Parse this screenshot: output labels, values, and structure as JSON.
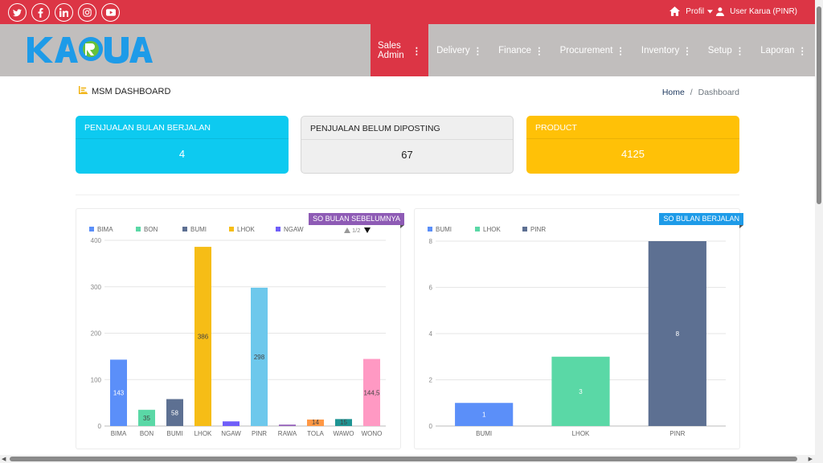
{
  "social": [
    {
      "icon": "twitter-icon",
      "glyph": "t"
    },
    {
      "icon": "facebook-icon",
      "glyph": "f"
    },
    {
      "icon": "linkedin-icon",
      "glyph": "in"
    },
    {
      "icon": "instagram-icon",
      "glyph": "◎"
    },
    {
      "icon": "youtube-icon",
      "glyph": "▶"
    }
  ],
  "topbar": {
    "home_icon": "home-icon",
    "profile_label": "Profil",
    "user_label": "User Karua (PINR)",
    "user_icon": "user-icon"
  },
  "brand": {
    "logo_text": "KARUA",
    "colors": {
      "primary": "#1e9be8",
      "accent": "#66c13a",
      "red": "#dc3545"
    }
  },
  "nav": {
    "items": [
      {
        "label": "Sales Admin",
        "active": true
      },
      {
        "label": "Delivery",
        "active": false
      },
      {
        "label": "Finance",
        "active": false
      },
      {
        "label": "Procurement",
        "active": false
      },
      {
        "label": "Inventory",
        "active": false
      },
      {
        "label": "Setup",
        "active": false
      },
      {
        "label": "Laporan",
        "active": false
      }
    ]
  },
  "page": {
    "title": "MSM DASHBOARD",
    "breadcrumb_home": "Home",
    "breadcrumb_sep": "/",
    "breadcrumb_current": "Dashboard"
  },
  "boxes": [
    {
      "title": "PENJUALAN BULAN BERJALAN",
      "value": "4",
      "color": "#0dcaf0"
    },
    {
      "title": "PENJUALAN BELUM DIPOSTING",
      "value": "67",
      "color": "#efefef"
    },
    {
      "title": "PRODUCT",
      "value": "4125",
      "color": "#ffc107"
    }
  ],
  "chart_data": [
    {
      "type": "bar",
      "ribbon": "SO BULAN SEBELUMNYA",
      "legend": [
        {
          "name": "BIMA",
          "color": "#5b8ff9"
        },
        {
          "name": "BON",
          "color": "#5ad8a6"
        },
        {
          "name": "BUMI",
          "color": "#5d7092"
        },
        {
          "name": "LHOK",
          "color": "#f6bd16"
        },
        {
          "name": "NGAW",
          "color": "#6f5ef9"
        }
      ],
      "legend_page": "1/2",
      "categories": [
        "BIMA",
        "BON",
        "BUMI",
        "LHOK",
        "NGAW",
        "PINR",
        "RAWA",
        "TOLA",
        "WAWO",
        "WONO"
      ],
      "values": [
        143,
        35,
        58,
        386,
        10,
        298,
        3,
        14,
        15,
        144.5
      ],
      "labels": [
        "143",
        "35",
        "58",
        "386",
        "",
        "298",
        "",
        "14",
        "15",
        "144,5"
      ],
      "colors": [
        "#5b8ff9",
        "#5ad8a6",
        "#5d7092",
        "#f6bd16",
        "#6f5ef9",
        "#6dc8ec",
        "#945fb9",
        "#ff9845",
        "#1e9493",
        "#ff99c3"
      ],
      "yticks": [
        0,
        100,
        200,
        300,
        400
      ],
      "ylim": [
        0,
        400
      ]
    },
    {
      "type": "bar",
      "ribbon": "SO BULAN BERJALAN",
      "legend": [
        {
          "name": "BUMI",
          "color": "#5b8ff9"
        },
        {
          "name": "LHOK",
          "color": "#5ad8a6"
        },
        {
          "name": "PINR",
          "color": "#5d7092"
        }
      ],
      "categories": [
        "BUMI",
        "LHOK",
        "PINR"
      ],
      "values": [
        1,
        3,
        8
      ],
      "labels": [
        "1",
        "3",
        "8"
      ],
      "colors": [
        "#5b8ff9",
        "#5ad8a6",
        "#5d7092"
      ],
      "yticks": [
        0,
        2,
        4,
        6,
        8
      ],
      "ylim": [
        0,
        8
      ]
    }
  ]
}
